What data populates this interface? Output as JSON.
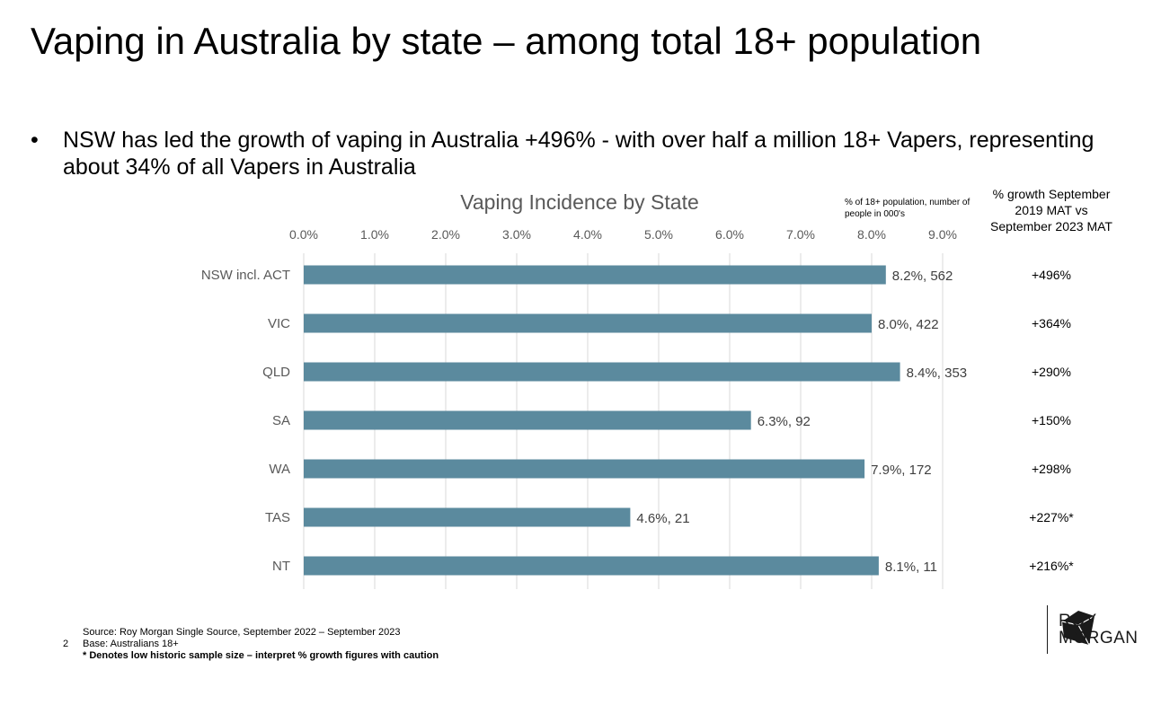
{
  "title": "Vaping in Australia by state – among total 18+ population",
  "bullet": {
    "symbol": "•",
    "text": "NSW has led the growth of vaping in Australia +496% - with over half a million 18+ Vapers, representing about 34% of all Vapers in Australia"
  },
  "chart_data": {
    "type": "bar",
    "orientation": "horizontal",
    "title": "Vaping Incidence by State",
    "unit_note": "% of 18+ population, number of people in 000's",
    "categories": [
      "NSW incl. ACT",
      "VIC",
      "QLD",
      "SA",
      "WA",
      "TAS",
      "NT"
    ],
    "values": [
      8.2,
      8.0,
      8.4,
      6.3,
      7.9,
      4.6,
      8.1
    ],
    "data_labels": [
      "8.2%, 562",
      "8.0%, 422",
      "8.4%, 353",
      "6.3%, 92",
      "7.9%, 172",
      "4.6%, 21",
      "8.1%, 11"
    ],
    "xlim": [
      0,
      9
    ],
    "x_ticks": [
      "0.0%",
      "1.0%",
      "2.0%",
      "3.0%",
      "4.0%",
      "5.0%",
      "6.0%",
      "7.0%",
      "8.0%",
      "9.0%"
    ],
    "x_axis_position": "top",
    "grid": true,
    "bar_color": "#5B8A9E",
    "gridline_color": "#D9D9D9"
  },
  "growth": {
    "header": "% growth September 2019 MAT vs September 2023 MAT",
    "values": [
      "+496%",
      "+364%",
      "+290%",
      "+150%",
      "+298%",
      "+227%*",
      "+216%*"
    ]
  },
  "footer": {
    "page": "2",
    "source": "Source: Roy Morgan Single Source, September 2022 – September 2023",
    "base": "Base: Australians 18+",
    "note": "* Denotes low historic sample size – interpret % growth figures with caution"
  },
  "logo": {
    "line1": "ROY",
    "line2": "MORGAN",
    "icon": "roy-morgan-cube-logo-icon"
  }
}
